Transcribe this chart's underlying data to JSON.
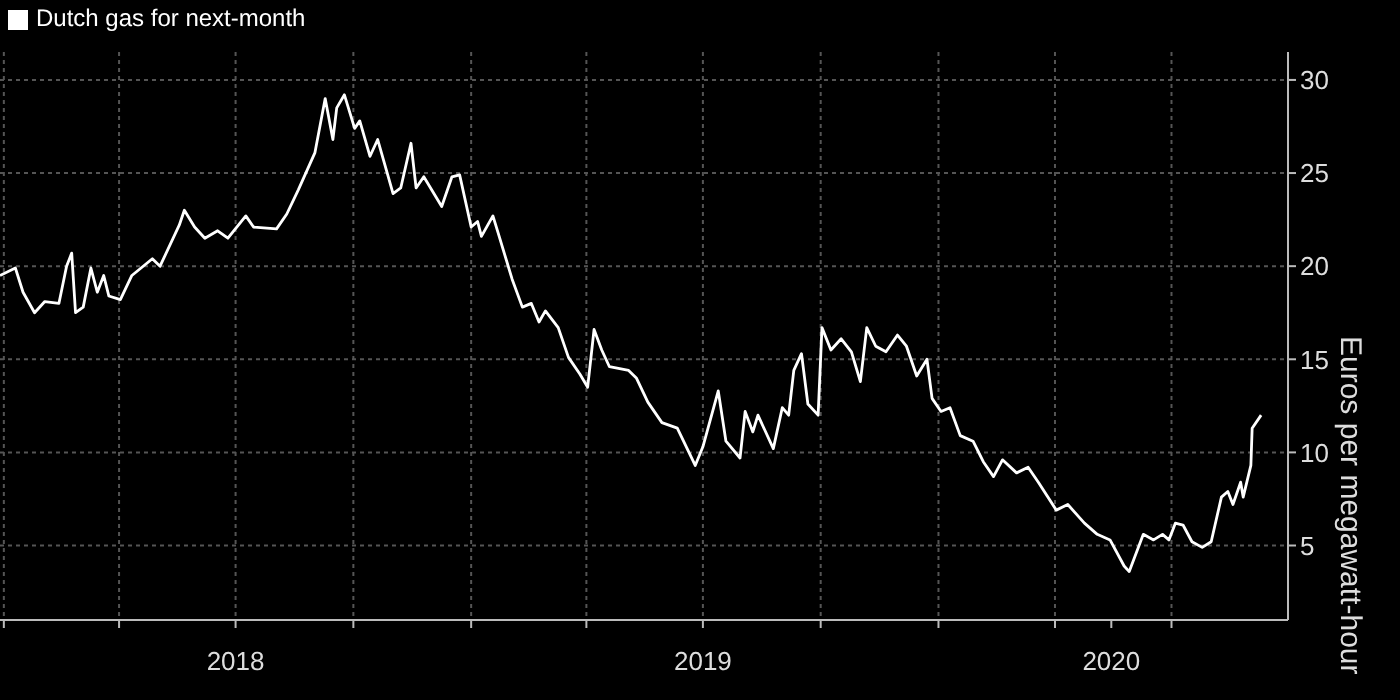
{
  "chart_data": {
    "type": "line",
    "ylabel": "Euros per megawatt-hour",
    "legend": "top left",
    "grid": true,
    "line_style": "solid",
    "marker": "none",
    "xlim": [
      "2017-12-29",
      "2020-09-30"
    ],
    "ylim": [
      1,
      31.5
    ],
    "yticks": [
      5,
      10,
      15,
      20,
      25,
      30
    ],
    "xticks": [
      {
        "value": "2018-01-01",
        "label": null
      },
      {
        "value": "2018-04-01",
        "label": null
      },
      {
        "value": "2018-07-01",
        "label": "2018"
      },
      {
        "value": "2018-07-01",
        "label": null
      },
      {
        "value": "2018-10-01",
        "label": null
      },
      {
        "value": "2019-01-01",
        "label": null
      },
      {
        "value": "2019-04-01",
        "label": null
      },
      {
        "value": "2019-07-01",
        "label": "2019"
      },
      {
        "value": "2019-07-01",
        "label": null
      },
      {
        "value": "2019-10-01",
        "label": null
      },
      {
        "value": "2020-01-01",
        "label": null
      },
      {
        "value": "2020-04-01",
        "label": null
      },
      {
        "value": "2020-05-15",
        "label": "2020"
      },
      {
        "value": "2020-07-01",
        "label": null
      }
    ],
    "x": [
      "2017-12-29",
      "2018-01-10",
      "2018-01-16",
      "2018-01-25",
      "2018-02-02",
      "2018-02-13",
      "2018-02-19",
      "2018-02-23",
      "2018-02-26",
      "2018-03-04",
      "2018-03-10",
      "2018-03-15",
      "2018-03-20",
      "2018-03-24",
      "2018-04-02",
      "2018-04-11",
      "2018-04-27",
      "2018-05-03",
      "2018-05-18",
      "2018-05-22",
      "2018-05-30",
      "2018-06-07",
      "2018-06-17",
      "2018-06-25",
      "2018-07-09",
      "2018-07-15",
      "2018-08-02",
      "2018-08-10",
      "2018-08-19",
      "2018-09-01",
      "2018-09-09",
      "2018-09-15",
      "2018-09-18",
      "2018-09-24",
      "2018-10-02",
      "2018-10-06",
      "2018-10-14",
      "2018-10-20",
      "2018-11-01",
      "2018-11-07",
      "2018-11-15",
      "2018-11-19",
      "2018-11-25",
      "2018-12-09",
      "2018-12-17",
      "2018-12-23",
      "2019-01-01",
      "2019-01-06",
      "2019-01-09",
      "2019-01-18",
      "2019-01-22",
      "2019-02-02",
      "2019-02-10",
      "2019-02-17",
      "2019-02-23",
      "2019-02-28",
      "2019-03-10",
      "2019-03-18",
      "2019-03-27",
      "2019-04-02",
      "2019-04-07",
      "2019-04-13",
      "2019-04-19",
      "2019-05-04",
      "2019-05-10",
      "2019-05-19",
      "2019-05-30",
      "2019-06-11",
      "2019-06-25",
      "2019-07-01",
      "2019-07-13",
      "2019-07-19",
      "2019-07-30",
      "2019-08-03",
      "2019-08-09",
      "2019-08-13",
      "2019-08-25",
      "2019-09-01",
      "2019-09-06",
      "2019-09-10",
      "2019-09-16",
      "2019-09-21",
      "2019-09-29",
      "2019-10-02",
      "2019-10-09",
      "2019-10-17",
      "2019-10-25",
      "2019-11-01",
      "2019-11-06",
      "2019-11-13",
      "2019-11-21",
      "2019-11-30",
      "2019-12-07",
      "2019-12-15",
      "2019-12-23",
      "2019-12-27",
      "2020-01-03",
      "2020-01-10",
      "2020-01-18",
      "2020-01-28",
      "2020-02-05",
      "2020-02-13",
      "2020-02-20",
      "2020-03-02",
      "2020-03-11",
      "2020-03-19",
      "2020-04-02",
      "2020-04-11",
      "2020-04-24",
      "2020-05-04",
      "2020-05-14",
      "2020-05-25",
      "2020-05-29",
      "2020-06-09",
      "2020-06-17",
      "2020-06-24",
      "2020-06-29",
      "2020-07-04",
      "2020-07-10",
      "2020-07-17",
      "2020-07-25",
      "2020-08-01",
      "2020-08-09",
      "2020-08-14",
      "2020-08-18",
      "2020-08-24",
      "2020-08-26",
      "2020-09-01",
      "2020-09-02",
      "2020-09-09"
    ],
    "series": [
      {
        "name": "Dutch gas for next-month",
        "color": "#ffffff",
        "values": [
          19.5,
          19.9,
          18.6,
          17.5,
          18.1,
          18.0,
          20.0,
          20.7,
          17.5,
          17.8,
          19.9,
          18.6,
          19.5,
          18.4,
          18.2,
          19.5,
          20.4,
          20.0,
          22.2,
          23.0,
          22.1,
          21.5,
          21.9,
          21.5,
          22.7,
          22.1,
          22.0,
          22.8,
          24.1,
          26.1,
          29.0,
          26.8,
          28.5,
          29.2,
          27.4,
          27.8,
          25.9,
          26.8,
          23.9,
          24.2,
          26.6,
          24.2,
          24.8,
          23.2,
          24.8,
          24.9,
          22.1,
          22.4,
          21.6,
          22.7,
          21.8,
          19.3,
          17.8,
          18.0,
          17.0,
          17.6,
          16.7,
          15.1,
          14.2,
          13.5,
          16.6,
          15.5,
          14.6,
          14.4,
          14.0,
          12.7,
          11.6,
          11.3,
          9.3,
          10.3,
          13.3,
          10.6,
          9.7,
          12.2,
          11.1,
          12.0,
          10.2,
          12.4,
          12.0,
          14.4,
          15.3,
          12.6,
          12.0,
          16.7,
          15.5,
          16.1,
          15.4,
          13.8,
          16.7,
          15.7,
          15.4,
          16.3,
          15.7,
          14.1,
          15.0,
          12.9,
          12.2,
          12.4,
          10.9,
          10.6,
          9.5,
          8.7,
          9.6,
          8.9,
          9.2,
          8.4,
          6.9,
          7.2,
          6.2,
          5.6,
          5.3,
          3.9,
          3.6,
          5.6,
          5.3,
          5.6,
          5.3,
          6.2,
          6.1,
          5.2,
          4.9,
          5.2,
          7.6,
          7.9,
          7.2,
          8.4,
          7.6,
          9.3,
          11.3,
          12.0
        ]
      }
    ]
  }
}
